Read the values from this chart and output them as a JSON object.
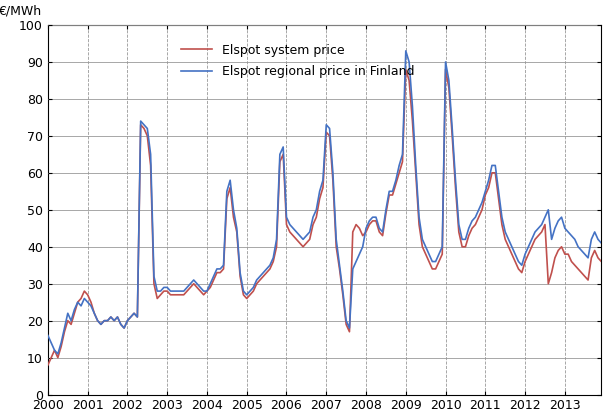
{
  "ylabel": "€/MWh",
  "ylim": [
    0,
    100
  ],
  "yticks": [
    0,
    10,
    20,
    30,
    40,
    50,
    60,
    70,
    80,
    90,
    100
  ],
  "xlim_start": 2000.0,
  "xlim_end": 2013.92,
  "xtick_years": [
    2000,
    2001,
    2002,
    2003,
    2004,
    2005,
    2006,
    2007,
    2008,
    2009,
    2010,
    2011,
    2012,
    2013
  ],
  "color_finland": "#4472C4",
  "color_system": "#C0504D",
  "legend_finland": "Elspot regional price in Finland",
  "legend_system": "Elspot system price",
  "finland_data": [
    16,
    14,
    12,
    11,
    14,
    18,
    22,
    20,
    23,
    25,
    24,
    26,
    25,
    24,
    22,
    20,
    19,
    20,
    20,
    21,
    20,
    21,
    19,
    18,
    20,
    21,
    22,
    21,
    74,
    73,
    72,
    65,
    32,
    28,
    28,
    29,
    29,
    28,
    28,
    28,
    28,
    28,
    29,
    30,
    31,
    30,
    29,
    28,
    28,
    30,
    32,
    34,
    34,
    35,
    55,
    58,
    50,
    45,
    33,
    28,
    27,
    28,
    29,
    31,
    32,
    33,
    34,
    35,
    37,
    42,
    65,
    67,
    48,
    46,
    45,
    44,
    43,
    42,
    43,
    44,
    48,
    50,
    55,
    58,
    73,
    72,
    60,
    42,
    35,
    28,
    20,
    18,
    34,
    36,
    38,
    40,
    45,
    47,
    48,
    48,
    45,
    44,
    50,
    55,
    55,
    58,
    62,
    65,
    93,
    90,
    78,
    62,
    48,
    42,
    40,
    38,
    36,
    36,
    38,
    40,
    90,
    85,
    72,
    58,
    46,
    42,
    42,
    45,
    47,
    48,
    50,
    52,
    55,
    58,
    62,
    62,
    55,
    48,
    44,
    42,
    40,
    38,
    36,
    35,
    38,
    40,
    42,
    44,
    45,
    46,
    48,
    50,
    42,
    45,
    47,
    48,
    45,
    44,
    43,
    42,
    40,
    39,
    38,
    37,
    42,
    44,
    42,
    41
  ],
  "system_data": [
    8,
    10,
    12,
    10,
    13,
    17,
    20,
    19,
    22,
    25,
    26,
    28,
    27,
    25,
    22,
    20,
    19,
    20,
    20,
    21,
    20,
    21,
    19,
    18,
    20,
    21,
    22,
    21,
    73,
    72,
    70,
    62,
    30,
    26,
    27,
    28,
    28,
    27,
    27,
    27,
    27,
    27,
    28,
    29,
    30,
    29,
    28,
    27,
    28,
    29,
    31,
    33,
    33,
    34,
    53,
    56,
    48,
    44,
    32,
    27,
    26,
    27,
    28,
    30,
    31,
    32,
    33,
    34,
    36,
    40,
    63,
    65,
    46,
    44,
    43,
    42,
    41,
    40,
    41,
    42,
    46,
    48,
    53,
    56,
    71,
    70,
    58,
    40,
    34,
    27,
    19,
    17,
    44,
    46,
    45,
    43,
    44,
    46,
    47,
    47,
    44,
    43,
    49,
    54,
    54,
    57,
    60,
    63,
    88,
    85,
    74,
    60,
    46,
    40,
    38,
    36,
    34,
    34,
    36,
    38,
    88,
    83,
    70,
    56,
    44,
    40,
    40,
    43,
    45,
    46,
    48,
    50,
    54,
    56,
    60,
    60,
    53,
    46,
    42,
    40,
    38,
    36,
    34,
    33,
    36,
    38,
    40,
    42,
    43,
    44,
    46,
    30,
    33,
    37,
    39,
    40,
    38,
    38,
    36,
    35,
    34,
    33,
    32,
    31,
    37,
    39,
    37,
    36
  ]
}
